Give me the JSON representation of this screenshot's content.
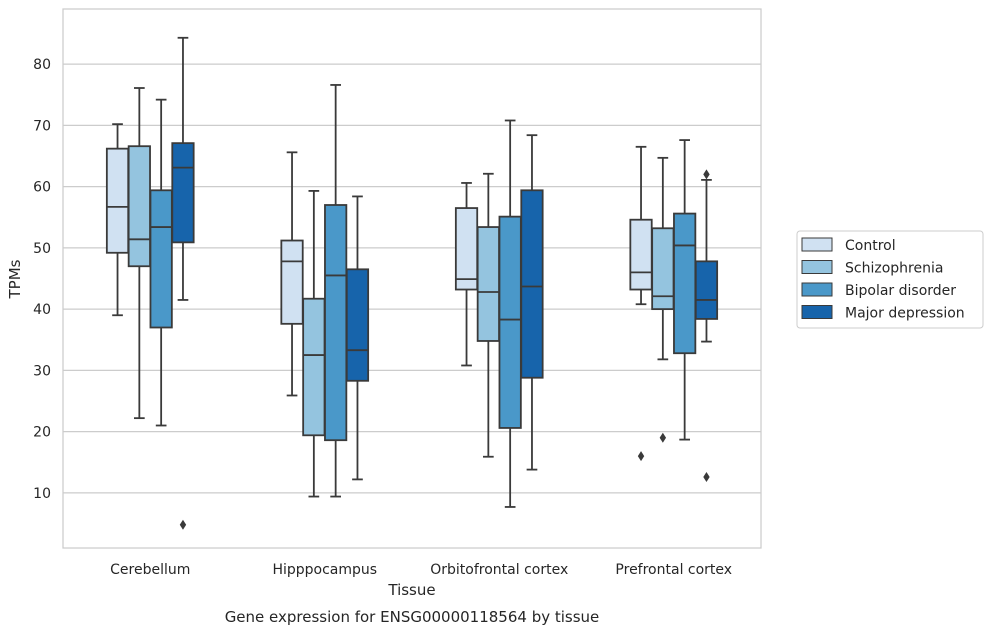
{
  "caption": "Gene expression for ENSG00000118564 by tissue",
  "chart_data": {
    "type": "box",
    "xlabel": "Tissue",
    "ylabel": "TPMs",
    "ylim": [
      1,
      89
    ],
    "yticks": [
      10,
      20,
      30,
      40,
      50,
      60,
      70,
      80
    ],
    "grid": "horizontal",
    "legend_position": "right",
    "categories": [
      "Cerebellum",
      "Hipppocampus",
      "Orbitofrontal cortex",
      "Prefrontal cortex"
    ],
    "series": [
      {
        "name": "Control",
        "color": "#d0e1f2",
        "boxes": [
          {
            "whislo": 39,
            "q1": 49.2,
            "med": 56.7,
            "q3": 66.2,
            "whishi": 70.2,
            "fliers": []
          },
          {
            "whislo": 25.9,
            "q1": 37.6,
            "med": 47.8,
            "q3": 51.2,
            "whishi": 65.6,
            "fliers": []
          },
          {
            "whislo": 30.8,
            "q1": 43.2,
            "med": 44.9,
            "q3": 56.5,
            "whishi": 60.6,
            "fliers": []
          },
          {
            "whislo": 40.8,
            "q1": 43.2,
            "med": 46,
            "q3": 54.6,
            "whishi": 66.5,
            "fliers": [
              16
            ]
          }
        ]
      },
      {
        "name": "Schizophrenia",
        "color": "#94c4df",
        "boxes": [
          {
            "whislo": 22.2,
            "q1": 47,
            "med": 51.4,
            "q3": 66.6,
            "whishi": 76.1,
            "fliers": []
          },
          {
            "whislo": 9.4,
            "q1": 19.4,
            "med": 32.5,
            "q3": 41.7,
            "whishi": 59.3,
            "fliers": []
          },
          {
            "whislo": 15.9,
            "q1": 34.8,
            "med": 42.8,
            "q3": 53.4,
            "whishi": 62.1,
            "fliers": []
          },
          {
            "whislo": 31.8,
            "q1": 40,
            "med": 42.1,
            "q3": 53.2,
            "whishi": 64.7,
            "fliers": [
              19
            ]
          }
        ]
      },
      {
        "name": "Bipolar disorder",
        "color": "#4a98c9",
        "boxes": [
          {
            "whislo": 21,
            "q1": 37,
            "med": 53.4,
            "q3": 59.4,
            "whishi": 74.2,
            "fliers": []
          },
          {
            "whislo": 9.4,
            "q1": 18.6,
            "med": 45.5,
            "q3": 57,
            "whishi": 76.6,
            "fliers": []
          },
          {
            "whislo": 7.7,
            "q1": 20.6,
            "med": 38.3,
            "q3": 55.1,
            "whishi": 70.8,
            "fliers": []
          },
          {
            "whislo": 18.7,
            "q1": 32.8,
            "med": 50.4,
            "q3": 55.6,
            "whishi": 67.6,
            "fliers": []
          }
        ]
      },
      {
        "name": "Major depression",
        "color": "#1764ab",
        "boxes": [
          {
            "whislo": 41.5,
            "q1": 50.9,
            "med": 63.1,
            "q3": 67.1,
            "whishi": 84.3,
            "fliers": [
              4.8
            ]
          },
          {
            "whislo": 12.2,
            "q1": 28.3,
            "med": 33.3,
            "q3": 46.5,
            "whishi": 58.4,
            "fliers": []
          },
          {
            "whislo": 13.8,
            "q1": 28.8,
            "med": 43.7,
            "q3": 59.4,
            "whishi": 68.4,
            "fliers": []
          },
          {
            "whislo": 34.7,
            "q1": 38.4,
            "med": 41.5,
            "q3": 47.8,
            "whishi": 61.1,
            "fliers": [
              62,
              12.6
            ]
          }
        ]
      }
    ]
  }
}
